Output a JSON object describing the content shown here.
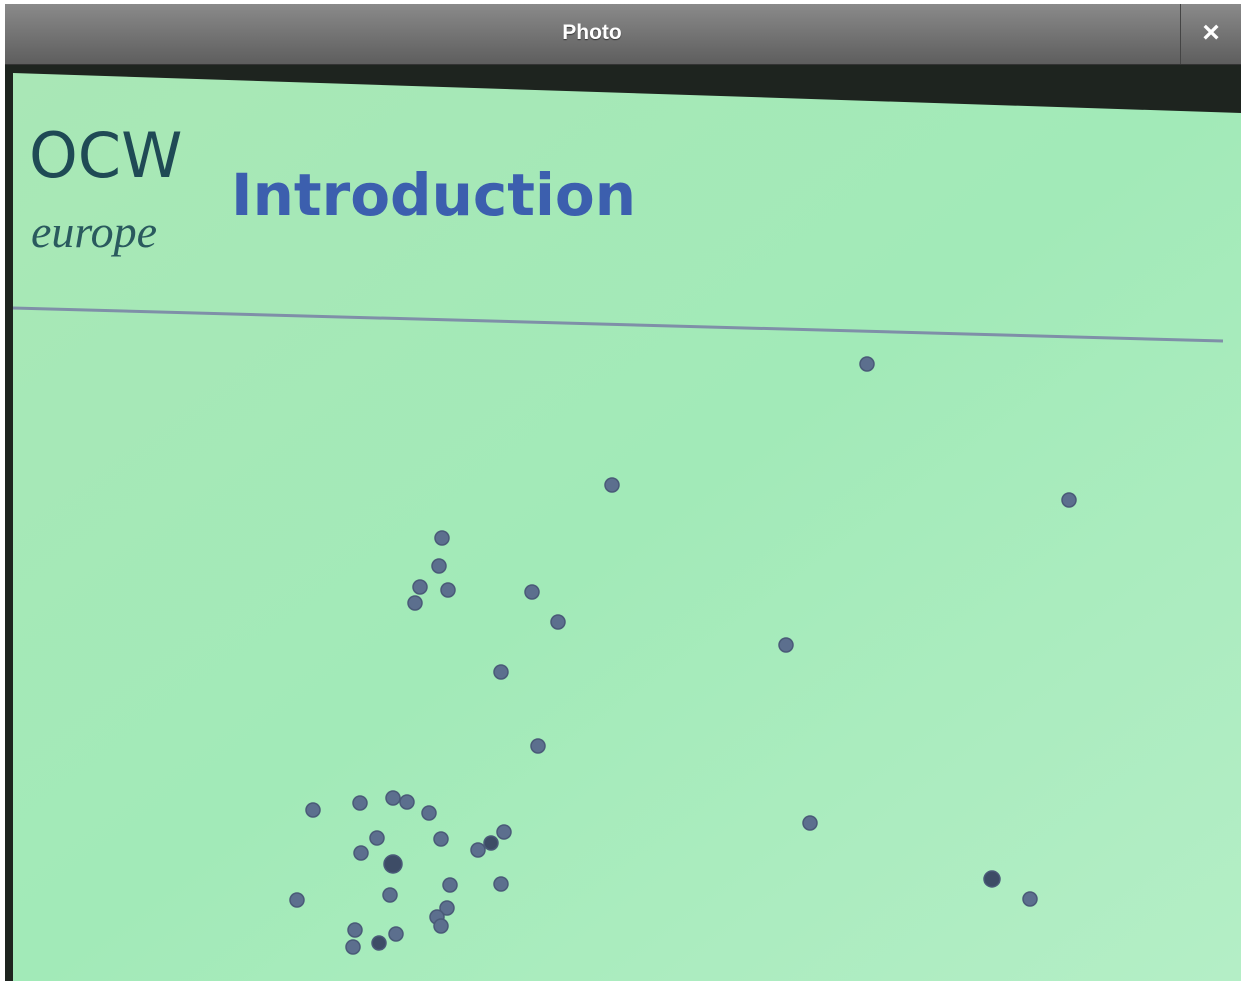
{
  "window": {
    "title": "Photo",
    "close": "×"
  },
  "slide": {
    "logo": "OCW",
    "logo_sub": "europe",
    "title": "Introduction"
  }
}
